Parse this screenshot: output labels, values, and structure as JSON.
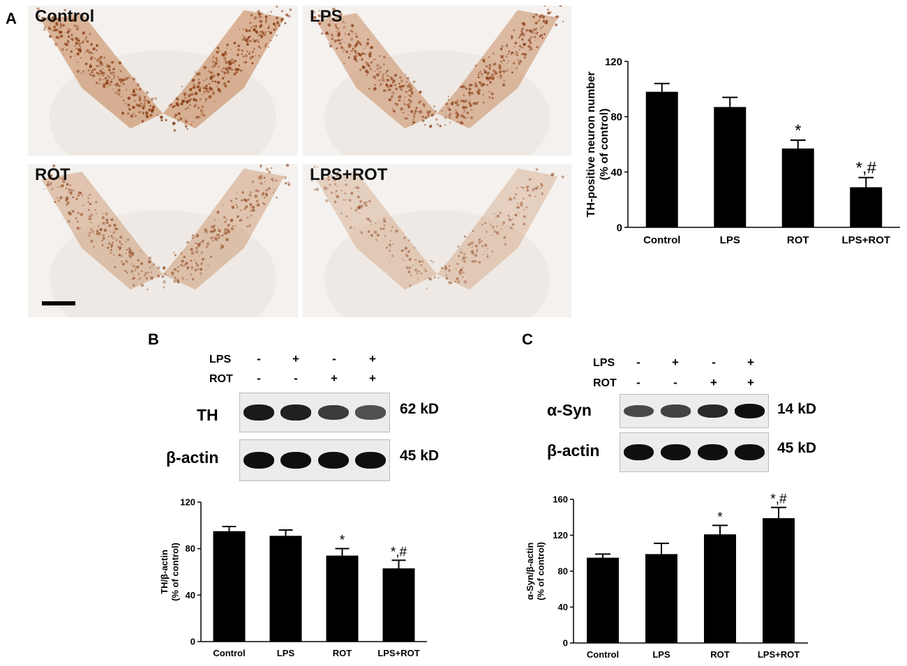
{
  "panels": {
    "a": "A",
    "b": "B",
    "c": "C"
  },
  "micrographs": [
    {
      "label": "Control",
      "density": 1.0
    },
    {
      "label": "LPS",
      "density": 0.85
    },
    {
      "label": "ROT",
      "density": 0.6
    },
    {
      "label": "LPS+ROT",
      "density": 0.35
    }
  ],
  "colors": {
    "stain": "#b8652a",
    "bar": "#000000",
    "tissue": "#f4f1ee"
  },
  "western_b": {
    "row_labels": [
      "LPS",
      "ROT"
    ],
    "signs": [
      [
        "-",
        "+",
        "-",
        "+"
      ],
      [
        "-",
        "-",
        "+",
        "+"
      ]
    ],
    "blots": [
      {
        "name": "TH",
        "kd": "62 kD",
        "intensity": [
          0.95,
          0.9,
          0.75,
          0.6
        ]
      },
      {
        "name": "β-actin",
        "kd": "45 kD",
        "intensity": [
          1.0,
          1.0,
          1.0,
          1.0
        ]
      }
    ]
  },
  "western_c": {
    "row_labels": [
      "LPS",
      "ROT"
    ],
    "signs": [
      [
        "-",
        "+",
        "-",
        "+"
      ],
      [
        "-",
        "-",
        "+",
        "+"
      ]
    ],
    "blots": [
      {
        "name": "α-Syn",
        "kd": "14 kD",
        "intensity": [
          0.65,
          0.7,
          0.85,
          1.0
        ]
      },
      {
        "name": "β-actin",
        "kd": "45 kD",
        "intensity": [
          1.0,
          1.0,
          1.0,
          1.0
        ]
      }
    ]
  },
  "chart_data": [
    {
      "type": "bar",
      "categories": [
        "Control",
        "LPS",
        "ROT",
        "LPS+ROT"
      ],
      "values": [
        98,
        87,
        57,
        29
      ],
      "errors": [
        6,
        7,
        6,
        7
      ],
      "annotations": [
        "",
        "",
        "*",
        "*,#"
      ],
      "ylabel_lines": [
        "TH-positive neuron number",
        "(% of control)"
      ],
      "ylim": [
        0,
        120
      ],
      "yticks": [
        0,
        40,
        80,
        120
      ]
    },
    {
      "type": "bar",
      "categories": [
        "Control",
        "LPS",
        "ROT",
        "LPS+ROT"
      ],
      "values": [
        95,
        91,
        74,
        63
      ],
      "errors": [
        4,
        5,
        6,
        7
      ],
      "annotations": [
        "",
        "",
        "*",
        "*,#"
      ],
      "ylabel_lines": [
        "TH/β-actin",
        "(% of control)"
      ],
      "ylim": [
        0,
        120
      ],
      "yticks": [
        0,
        40,
        80,
        120
      ]
    },
    {
      "type": "bar",
      "categories": [
        "Control",
        "LPS",
        "ROT",
        "LPS+ROT"
      ],
      "values": [
        95,
        99,
        121,
        139
      ],
      "errors": [
        4,
        12,
        10,
        12
      ],
      "annotations": [
        "",
        "",
        "*",
        "*,#"
      ],
      "ylabel_lines": [
        "α-Syn/β-actin",
        "(% of control)"
      ],
      "ylim": [
        0,
        160
      ],
      "yticks": [
        0,
        40,
        80,
        120,
        160
      ]
    }
  ]
}
